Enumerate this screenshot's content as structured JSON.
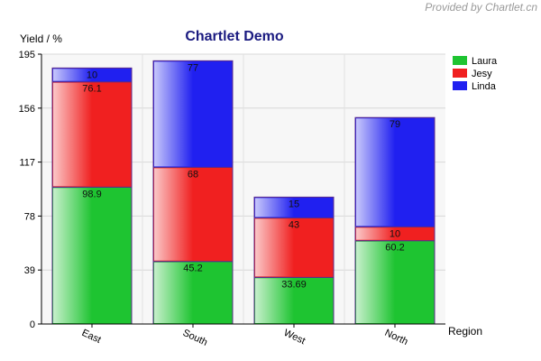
{
  "credit": "Provided by Chartlet.cn",
  "chart_data": {
    "type": "bar",
    "stacked": true,
    "title": "Chartlet Demo",
    "xlabel": "Region",
    "ylabel": "Yield / %",
    "ylim": [
      0,
      195
    ],
    "yticks": [
      0,
      39,
      78,
      117,
      156,
      195
    ],
    "categories": [
      "East",
      "South",
      "West",
      "North"
    ],
    "series": [
      {
        "name": "Laura",
        "color": "#1ec431",
        "values": [
          98.9,
          45.2,
          33.69,
          60.2
        ],
        "labels": [
          "98.9",
          "45.2",
          "33.69",
          "60.2"
        ]
      },
      {
        "name": "Jesy",
        "color": "#f02020",
        "values": [
          76.1,
          68,
          43,
          10
        ],
        "labels": [
          "76.1",
          "68",
          "43",
          "10"
        ]
      },
      {
        "name": "Linda",
        "color": "#2020f0",
        "values": [
          10,
          77,
          15,
          79
        ],
        "labels": [
          "10",
          "77",
          "15",
          "79"
        ]
      }
    ],
    "legend": "right",
    "grid": true
  }
}
